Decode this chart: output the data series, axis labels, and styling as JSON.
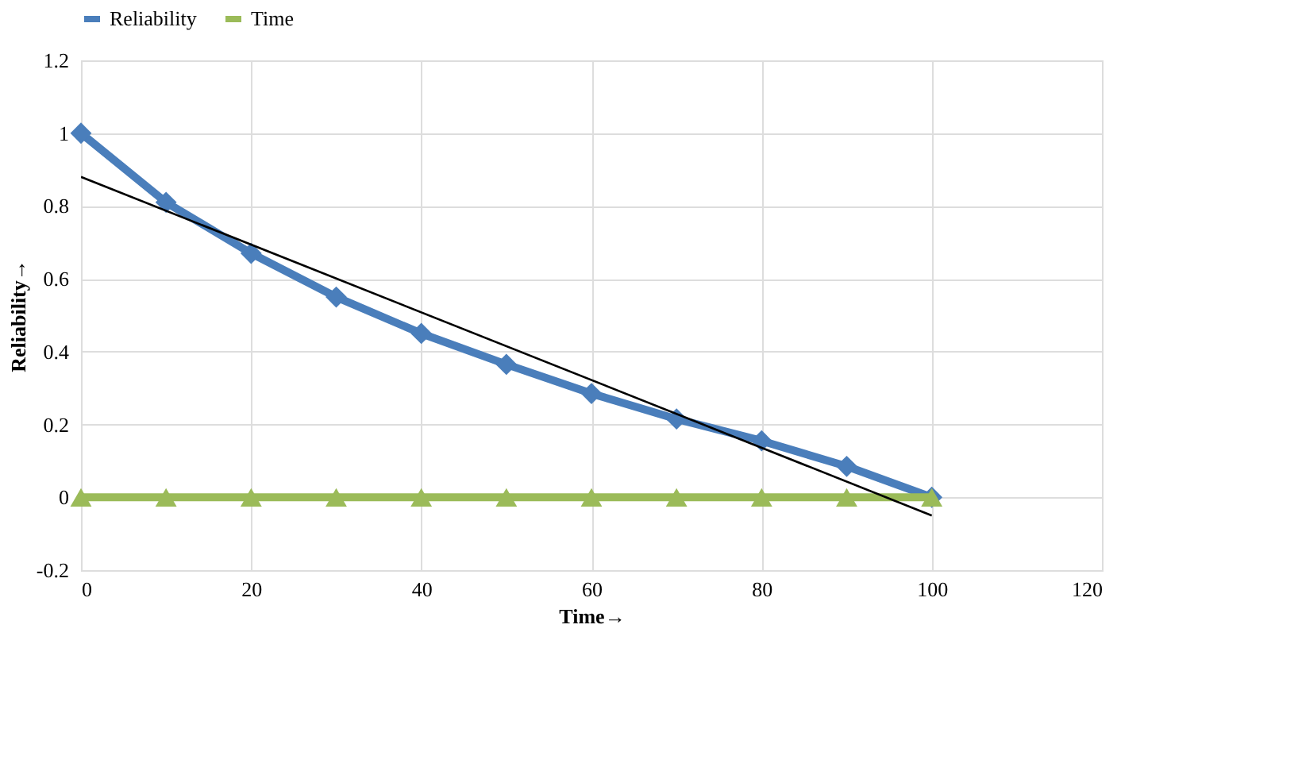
{
  "chart_data": {
    "type": "line",
    "xlabel": "Time→",
    "ylabel": "Reliability→",
    "x": [
      0,
      10,
      20,
      30,
      40,
      50,
      60,
      70,
      80,
      90,
      100
    ],
    "series": [
      {
        "name": "Reliability",
        "color": "#4a7ebb",
        "marker": "diamond",
        "values": [
          1,
          0.81,
          0.67,
          0.55,
          0.45,
          0.365,
          0.285,
          0.215,
          0.155,
          0.085,
          0
        ]
      },
      {
        "name": "Time",
        "color": "#9bbb59",
        "marker": "triangle",
        "values": [
          0,
          0,
          0,
          0,
          0,
          0,
          0,
          0,
          0,
          0,
          0
        ]
      },
      {
        "type": "line",
        "color": "#000000",
        "marker": "none",
        "x": [
          0,
          100
        ],
        "values": [
          0.88,
          -0.05
        ]
      }
    ],
    "xlim": [
      0,
      120
    ],
    "xticks": [
      0,
      20,
      40,
      60,
      80,
      100,
      120
    ],
    "ylim": [
      -0.2,
      1.2
    ],
    "yticks": [
      -0.2,
      0,
      0.2,
      0.4,
      0.6,
      0.8,
      1,
      1.2
    ],
    "grid": true,
    "legend": "top",
    "line_style": "solid"
  }
}
